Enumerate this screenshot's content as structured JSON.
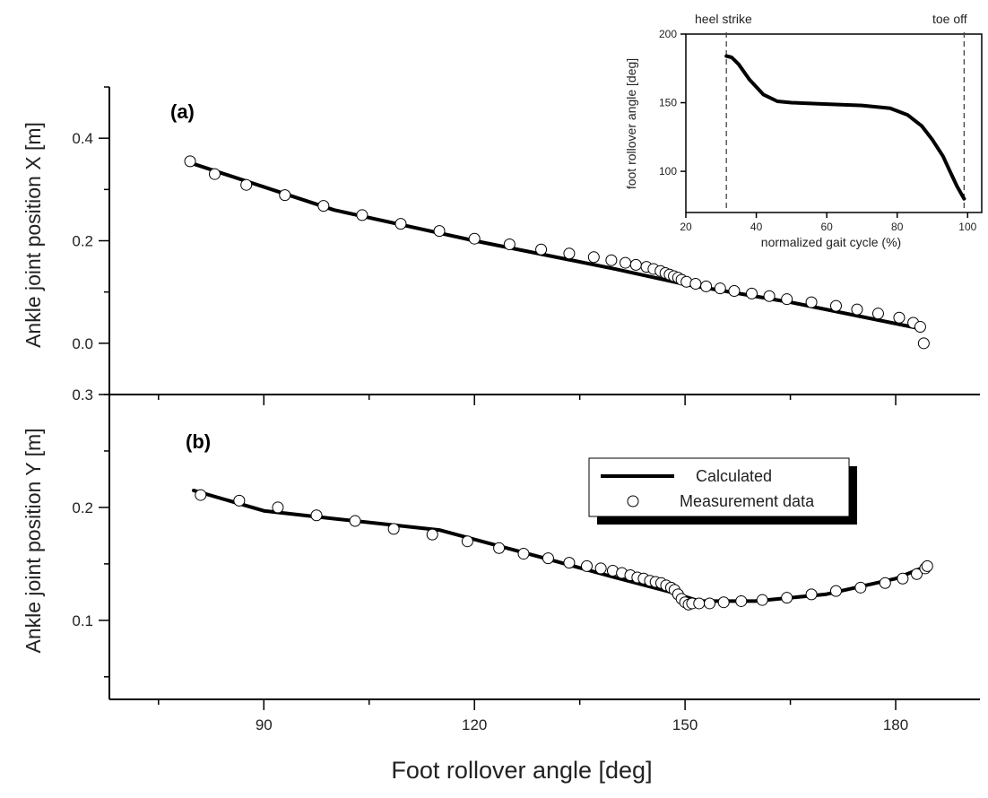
{
  "chart_data": [
    {
      "id": "a",
      "type": "scatter",
      "panel_label": "(a)",
      "ylabel": "Ankle joint position X [m]",
      "xlim": [
        68,
        192
      ],
      "ylim": [
        -0.1,
        0.5
      ],
      "yticks": [
        0.0,
        0.2,
        0.4
      ],
      "ytick_labels": [
        "0.0",
        "0.2",
        "0.4"
      ],
      "series": [
        {
          "name": "Calculated",
          "kind": "line",
          "x": [
            80,
            100,
            120,
            140,
            150,
            165,
            183
          ],
          "y": [
            0.35,
            0.26,
            0.2,
            0.145,
            0.115,
            0.08,
            0.03
          ]
        },
        {
          "name": "Measurement data",
          "kind": "points",
          "x": [
            79.5,
            83,
            87.5,
            93,
            98.5,
            104,
            109.5,
            115,
            120,
            125,
            129.5,
            133.5,
            137,
            139.5,
            141.5,
            143,
            144.5,
            145.5,
            146.5,
            147.2,
            147.8,
            148.4,
            149,
            149.5,
            150.2,
            151.5,
            153,
            155,
            157,
            159.5,
            162,
            164.5,
            168,
            171.5,
            174.5,
            177.5,
            180.5,
            182.5,
            183.5,
            184
          ],
          "y": [
            0.355,
            0.33,
            0.309,
            0.289,
            0.268,
            0.25,
            0.233,
            0.219,
            0.204,
            0.193,
            0.183,
            0.175,
            0.168,
            0.162,
            0.157,
            0.153,
            0.149,
            0.145,
            0.141,
            0.137,
            0.134,
            0.131,
            0.128,
            0.124,
            0.12,
            0.116,
            0.111,
            0.107,
            0.102,
            0.097,
            0.092,
            0.086,
            0.08,
            0.073,
            0.066,
            0.058,
            0.05,
            0.04,
            0.032,
            0.0
          ]
        }
      ]
    },
    {
      "id": "b",
      "type": "scatter",
      "panel_label": "(b)",
      "ylabel": "Ankle joint position Y [m]",
      "xlabel": "Foot rollover angle [deg]",
      "xlim": [
        68,
        192
      ],
      "ylim": [
        0.03,
        0.3
      ],
      "yticks": [
        0.1,
        0.2,
        0.3
      ],
      "ytick_labels": [
        "0.1",
        "0.2",
        "0.3"
      ],
      "xticks": [
        90,
        120,
        150,
        180
      ],
      "xtick_labels": [
        "90",
        "120",
        "150",
        "180"
      ],
      "legend": {
        "placement": "center-right",
        "entries": [
          "Calculated",
          "Measurement data"
        ]
      },
      "series": [
        {
          "name": "Calculated",
          "kind": "line",
          "x": [
            80,
            90,
            100,
            115,
            130,
            140,
            148,
            152,
            160,
            170,
            180,
            184
          ],
          "y": [
            0.215,
            0.197,
            0.19,
            0.18,
            0.155,
            0.138,
            0.125,
            0.117,
            0.117,
            0.123,
            0.137,
            0.147
          ]
        },
        {
          "name": "Measurement data",
          "kind": "points",
          "x": [
            81,
            86.5,
            92,
            97.5,
            103,
            108.5,
            114,
            119,
            123.5,
            127,
            130.5,
            133.5,
            136,
            138,
            139.7,
            141,
            142.2,
            143.2,
            144.1,
            145,
            145.8,
            146.6,
            147.3,
            148,
            148.5,
            149,
            149.5,
            150,
            150.5,
            151,
            152,
            153.5,
            155.5,
            158,
            161,
            164.5,
            168,
            171.5,
            175,
            178.5,
            181,
            183,
            184.2,
            184.5
          ],
          "y": [
            0.211,
            0.206,
            0.2,
            0.193,
            0.188,
            0.181,
            0.176,
            0.17,
            0.164,
            0.159,
            0.155,
            0.151,
            0.148,
            0.146,
            0.144,
            0.142,
            0.14,
            0.138,
            0.137,
            0.135,
            0.134,
            0.133,
            0.131,
            0.129,
            0.127,
            0.123,
            0.119,
            0.116,
            0.114,
            0.115,
            0.115,
            0.115,
            0.116,
            0.117,
            0.118,
            0.12,
            0.123,
            0.126,
            0.129,
            0.133,
            0.137,
            0.141,
            0.146,
            0.148
          ]
        }
      ]
    },
    {
      "id": "inset",
      "type": "line",
      "xlabel": "normalized gait cycle (%)",
      "ylabel": "foot rollover angle [deg]",
      "xlim": [
        20,
        104
      ],
      "ylim": [
        70,
        200
      ],
      "xticks": [
        20,
        40,
        60,
        80,
        100
      ],
      "xtick_labels": [
        "20",
        "40",
        "60",
        "80",
        "100"
      ],
      "yticks": [
        100,
        150,
        200
      ],
      "ytick_labels": [
        "100",
        "150",
        "200"
      ],
      "annotations": [
        {
          "text": "heel strike",
          "x": 31.5
        },
        {
          "text": "toe off",
          "x": 99
        }
      ],
      "series": [
        {
          "kind": "line",
          "x": [
            31.5,
            33,
            35,
            38,
            42,
            46,
            50,
            60,
            70,
            78,
            83,
            87,
            90,
            93,
            95,
            97,
            99
          ],
          "y": [
            184,
            183,
            178,
            167,
            156,
            151,
            150,
            149,
            148,
            146,
            141,
            133,
            123,
            111,
            100,
            89,
            80
          ]
        }
      ]
    }
  ]
}
